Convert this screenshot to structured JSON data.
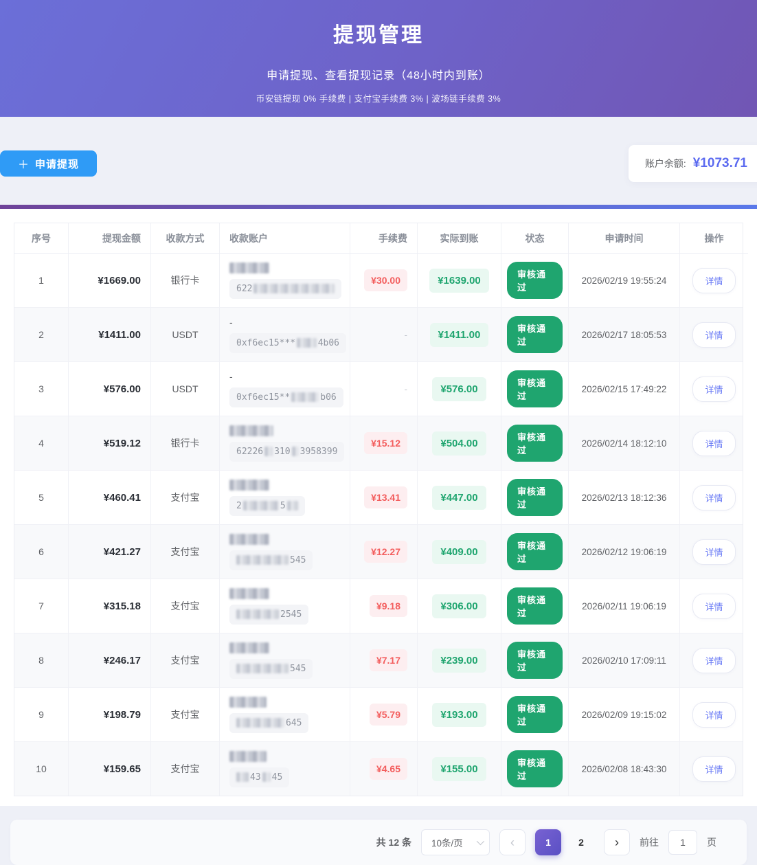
{
  "header": {
    "title": "提现管理",
    "subtitle": "申请提现、查看提现记录（48小时内到账）",
    "fee_note": "币安链提现 0% 手续费 | 支付宝手续费 3% | 波场链手续费 3%"
  },
  "toolbar": {
    "plus_icon": "＋",
    "apply_button": "申请提现",
    "balance_label": "账户余额:",
    "balance_value": "¥1073.71"
  },
  "table": {
    "columns": [
      "序号",
      "提现金额",
      "收款方式",
      "收款账户",
      "手续费",
      "实际到账",
      "状态",
      "申请时间",
      "操作"
    ],
    "action_label": "详情",
    "status_label": "审核通过",
    "rows": [
      {
        "no": "1",
        "amount": "¥1669.00",
        "method": "银行卡",
        "line1": [
          {
            "b": 58
          }
        ],
        "line2": [
          {
            "t": "622"
          },
          {
            "b": 118
          }
        ],
        "fee": "¥30.00",
        "actual": "¥1639.00",
        "status": "审核通过",
        "time": "2026/02/19 19:55:24"
      },
      {
        "no": "2",
        "amount": "¥1411.00",
        "method": "USDT",
        "line1": [
          {
            "t": "-"
          }
        ],
        "line2": [
          {
            "t": "0xf6ec15***"
          },
          {
            "b": 34
          },
          {
            "t": "4b06"
          }
        ],
        "fee": "-",
        "actual": "¥1411.00",
        "status": "审核通过",
        "time": "2026/02/17 18:05:53"
      },
      {
        "no": "3",
        "amount": "¥576.00",
        "method": "USDT",
        "line1": [
          {
            "t": "-"
          }
        ],
        "line2": [
          {
            "t": "0xf6ec15**"
          },
          {
            "b": 40
          },
          {
            "t": "b06"
          }
        ],
        "fee": "-",
        "actual": "¥576.00",
        "status": "审核通过",
        "time": "2026/02/15 17:49:22"
      },
      {
        "no": "4",
        "amount": "¥519.12",
        "method": "银行卡",
        "line1": [
          {
            "b": 64
          }
        ],
        "line2": [
          {
            "t": "62226"
          },
          {
            "b": 12
          },
          {
            "t": "310"
          },
          {
            "b": 10
          },
          {
            "t": "3958399"
          }
        ],
        "fee": "¥15.12",
        "actual": "¥504.00",
        "status": "审核通过",
        "time": "2026/02/14 18:12:10"
      },
      {
        "no": "5",
        "amount": "¥460.41",
        "method": "支付宝",
        "line1": [
          {
            "b": 58
          }
        ],
        "line2": [
          {
            "t": "2"
          },
          {
            "b": 52
          },
          {
            "t": "5"
          },
          {
            "b": 16
          }
        ],
        "fee": "¥13.41",
        "actual": "¥447.00",
        "status": "审核通过",
        "time": "2026/02/13 18:12:36"
      },
      {
        "no": "6",
        "amount": "¥421.27",
        "method": "支付宝",
        "line1": [
          {
            "b": 58
          }
        ],
        "line2": [
          {
            "b": 76
          },
          {
            "t": "545"
          }
        ],
        "fee": "¥12.27",
        "actual": "¥409.00",
        "status": "审核通过",
        "time": "2026/02/12 19:06:19"
      },
      {
        "no": "7",
        "amount": "¥315.18",
        "method": "支付宝",
        "line1": [
          {
            "b": 58
          }
        ],
        "line2": [
          {
            "b": 62
          },
          {
            "t": "2545"
          }
        ],
        "fee": "¥9.18",
        "actual": "¥306.00",
        "status": "审核通过",
        "time": "2026/02/11 19:06:19"
      },
      {
        "no": "8",
        "amount": "¥246.17",
        "method": "支付宝",
        "line1": [
          {
            "b": 58
          }
        ],
        "line2": [
          {
            "b": 76
          },
          {
            "t": "545"
          }
        ],
        "fee": "¥7.17",
        "actual": "¥239.00",
        "status": "审核通过",
        "time": "2026/02/10 17:09:11"
      },
      {
        "no": "9",
        "amount": "¥198.79",
        "method": "支付宝",
        "line1": [
          {
            "b": 54
          }
        ],
        "line2": [
          {
            "b": 70
          },
          {
            "t": "645"
          }
        ],
        "fee": "¥5.79",
        "actual": "¥193.00",
        "status": "审核通过",
        "time": "2026/02/09 19:15:02"
      },
      {
        "no": "10",
        "amount": "¥159.65",
        "method": "支付宝",
        "line1": [
          {
            "b": 54
          }
        ],
        "line2": [
          {
            "b": 18
          },
          {
            "t": "43"
          },
          {
            "b": 12
          },
          {
            "t": "45"
          }
        ],
        "fee": "¥4.65",
        "actual": "¥155.00",
        "status": "审核通过",
        "time": "2026/02/08 18:43:30"
      }
    ]
  },
  "pagination": {
    "total_text": "共 12 条",
    "page_size": "10条/页",
    "prev_icon": "‹",
    "next_icon": "›",
    "pages": [
      "1",
      "2"
    ],
    "active_page": "1",
    "goto_label": "前往",
    "goto_value": "1",
    "goto_suffix": "页"
  },
  "colors": {
    "hero_gradient_start": "#6b6fd8",
    "hero_gradient_end": "#7156b4",
    "accent_blue": "#2f9bf6",
    "balance_value": "#5b6af0",
    "success_green": "#1fa56f",
    "fee_red": "#f35d5d",
    "link_purple": "#6b7cf5",
    "divider_gradient_start": "#6f4399",
    "divider_gradient_end": "#5a79ea"
  }
}
